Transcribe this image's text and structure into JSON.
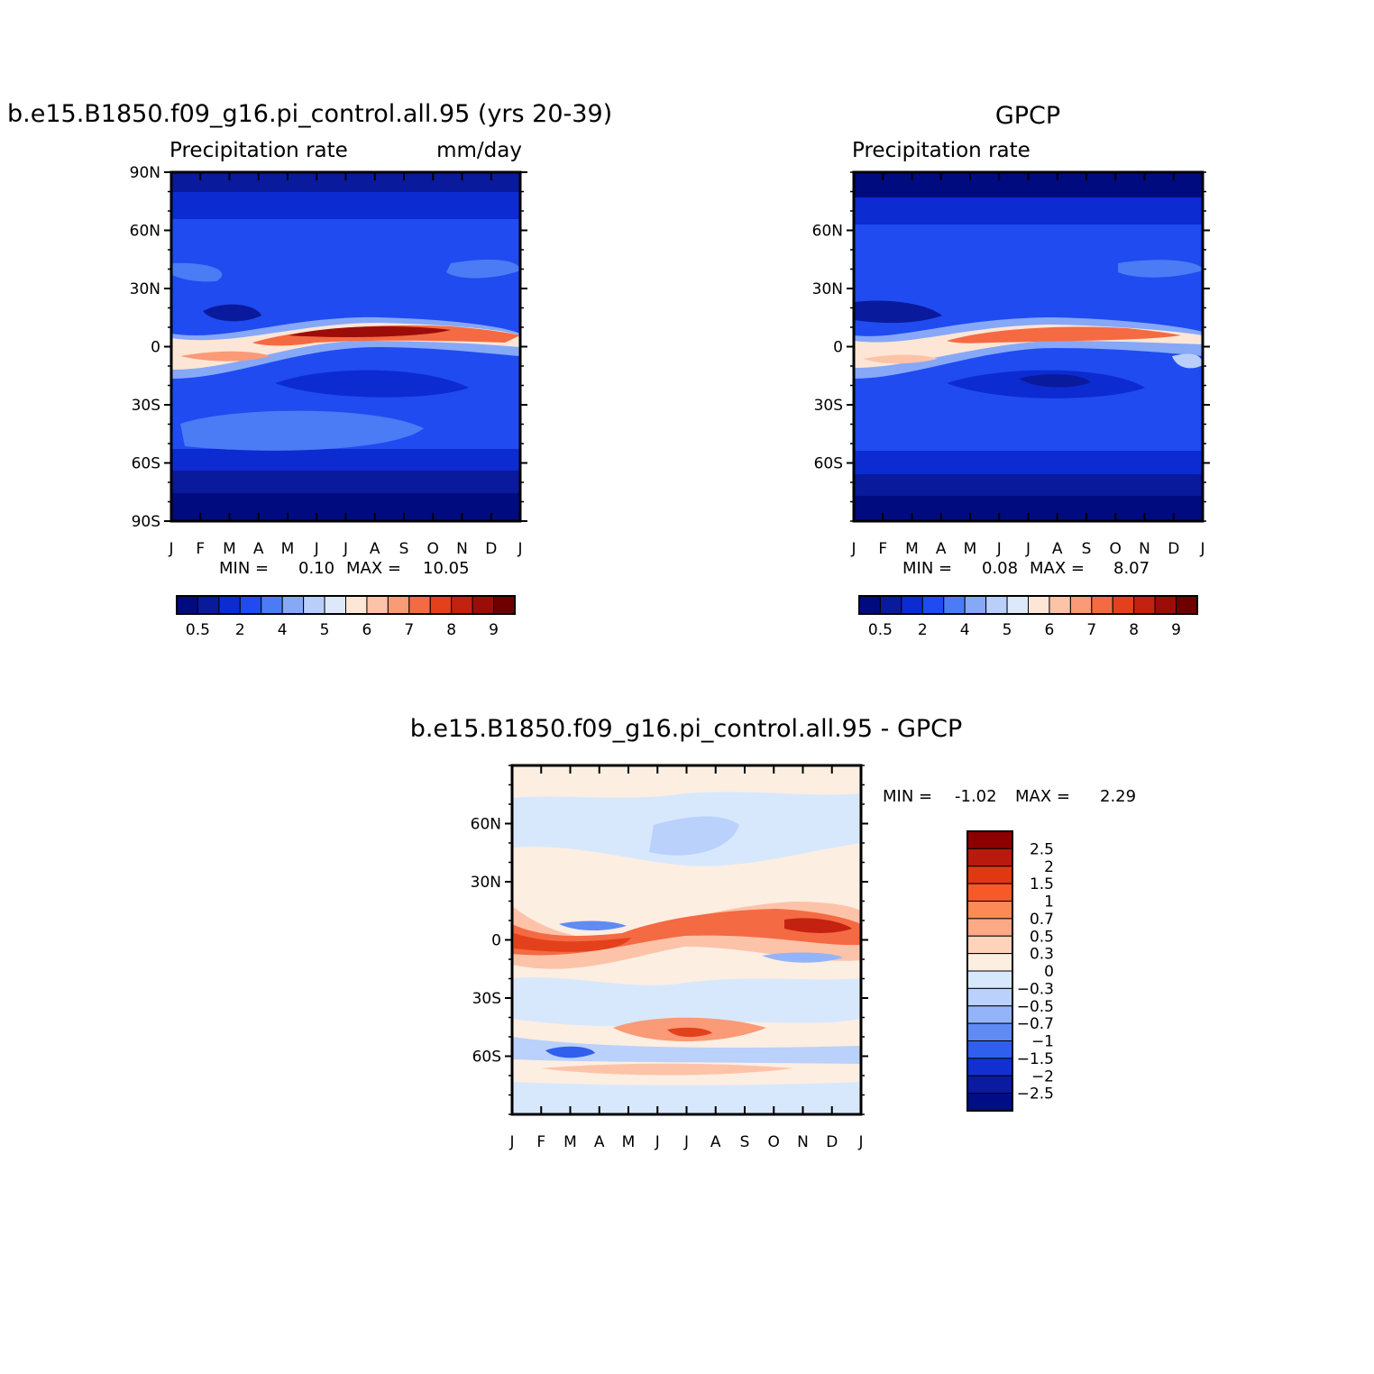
{
  "figure": {
    "panels": [
      {
        "id": "model",
        "title": "b.e15.B1850.f09_g16.pi_control.all.95 (yrs 20-39)",
        "left_string": "Precipitation rate",
        "right_string": "mm/day",
        "min_label": "MIN =",
        "min_value": "0.10",
        "max_label": "MAX =",
        "max_value": "10.05"
      },
      {
        "id": "obs",
        "title": "GPCP",
        "left_string": "Precipitation rate",
        "right_string": "",
        "min_label": "MIN =",
        "min_value": "0.08",
        "max_label": "MAX =",
        "max_value": "8.07"
      },
      {
        "id": "diff",
        "title": "b.e15.B1850.f09_g16.pi_control.all.95 - GPCP",
        "left_string": "",
        "right_string": "",
        "min_label": "MIN =",
        "min_value": "-1.02",
        "max_label": "MAX =",
        "max_value": "2.29"
      }
    ],
    "month_labels": [
      "J",
      "F",
      "M",
      "A",
      "M",
      "J",
      "J",
      "A",
      "S",
      "O",
      "N",
      "D",
      "J"
    ],
    "lat_labels_full": [
      "90N",
      "60N",
      "30N",
      "0",
      "30S",
      "60S",
      "90S"
    ],
    "lat_labels_inner": [
      "60N",
      "30N",
      "0",
      "30S",
      "60S"
    ],
    "precip_colorbar": {
      "colors": [
        "#000b7f",
        "#0a1a9c",
        "#0c2bd0",
        "#1f4bf0",
        "#4b7bf5",
        "#86a8f7",
        "#b9cef9",
        "#dde9fb",
        "#fde6d6",
        "#fcc3a8",
        "#fa9a77",
        "#f46a43",
        "#e3401c",
        "#c42210",
        "#9c0d0a",
        "#6e0000"
      ],
      "labels": [
        "0.5",
        "2",
        "4",
        "5",
        "6",
        "7",
        "8",
        "9"
      ]
    },
    "diff_colorbar": {
      "colors": [
        "#8c0000",
        "#b81a0d",
        "#e03812",
        "#f55a28",
        "#fb8a56",
        "#fca987",
        "#fdd3bb",
        "#fdeee2",
        "#d8e8fc",
        "#b9d1fb",
        "#93b4f8",
        "#5f8bf3",
        "#2f5fec",
        "#1230cf",
        "#0a1aa1",
        "#000e86"
      ],
      "labels": [
        "2.5",
        "2",
        "1.5",
        "1",
        "0.7",
        "0.5",
        "0.3",
        "0",
        "-0.3",
        "-0.5",
        "-0.7",
        "-1",
        "-1.5",
        "-2",
        "-2.5"
      ]
    }
  },
  "chart_data": [
    {
      "type": "heatmap",
      "title": "b.e15.B1850.f09_g16.pi_control.all.95 (yrs 20-39)",
      "left_string": "Precipitation rate",
      "units": "mm/day",
      "x": "month of year (Jan to Jan)",
      "y_range": [
        -90,
        90
      ],
      "min": 0.1,
      "max": 10.05,
      "contour_levels": [
        0.5,
        1,
        2,
        3,
        4,
        4.5,
        5,
        5.5,
        6,
        6.5,
        7,
        7.5,
        8,
        8.5,
        9
      ],
      "features": {
        "itcz_peak_month": "Aug",
        "itcz_peak_lat": 8,
        "itcz_peak_value": 10.05
      }
    },
    {
      "type": "heatmap",
      "title": "GPCP",
      "left_string": "Precipitation rate",
      "y_range": [
        -90,
        90
      ],
      "min": 0.08,
      "max": 8.07,
      "contour_levels": [
        0.5,
        1,
        2,
        3,
        4,
        4.5,
        5,
        5.5,
        6,
        6.5,
        7,
        7.5,
        8,
        8.5,
        9
      ],
      "features": {
        "itcz_peak_month": "Aug",
        "itcz_peak_lat": 8,
        "itcz_peak_value": 8.07
      }
    },
    {
      "type": "heatmap",
      "title": "b.e15.B1850.f09_g16.pi_control.all.95 - GPCP",
      "y_range": [
        -90,
        90
      ],
      "min": -1.02,
      "max": 2.29,
      "contour_levels": [
        -2.5,
        -2,
        -1.5,
        -1,
        -0.7,
        -0.5,
        -0.3,
        0,
        0.3,
        0.5,
        0.7,
        1,
        1.5,
        2,
        2.5
      ],
      "features": {
        "positive_band_lat": 5,
        "negative_band_lat": -60
      }
    }
  ]
}
